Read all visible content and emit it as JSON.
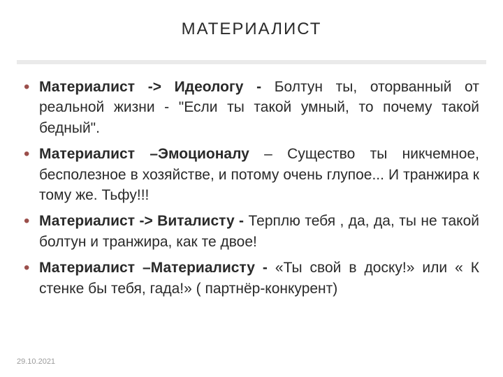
{
  "title": "МАТЕРИАЛИСТ",
  "bullets": [
    {
      "lead": "Материалист -> Идеологу -",
      "rest": " Болтун ты, оторванный от реальной жизни - \"Если ты такой умный, то почему такой бедный\"."
    },
    {
      "lead": "Материалист –Эмоционалу",
      "rest": " – Существо ты никчемное, бесполезное в хозяйстве, и потому очень глупое... И транжира к тому же. Тьфу!!!"
    },
    {
      "lead": "Материалист -> Виталисту -",
      "rest": " Терплю тебя , да, да, ты не такой болтун и транжира, как те двое!"
    },
    {
      "lead": "Материалист –Материалисту -",
      "rest": " «Ты свой в доску!» или « К стенке бы тебя, гада!» ( партнёр-конкурент)"
    }
  ],
  "date": "29.10.2021",
  "styling": {
    "slide_width": 720,
    "slide_height": 540,
    "background_color": "#ffffff",
    "title_fontsize": 24,
    "title_letterspacing": 2,
    "title_color": "#2a2a2a",
    "divider_color": "#eaeaea",
    "divider_height": 6,
    "bullet_color": "#9b4f4b",
    "body_fontsize": 21,
    "body_lineheight": 1.4,
    "body_color": "#2a2a2a",
    "body_align": "justify",
    "date_fontsize": 11,
    "date_color": "#9a9a9a",
    "font_family": "Century Gothic"
  }
}
